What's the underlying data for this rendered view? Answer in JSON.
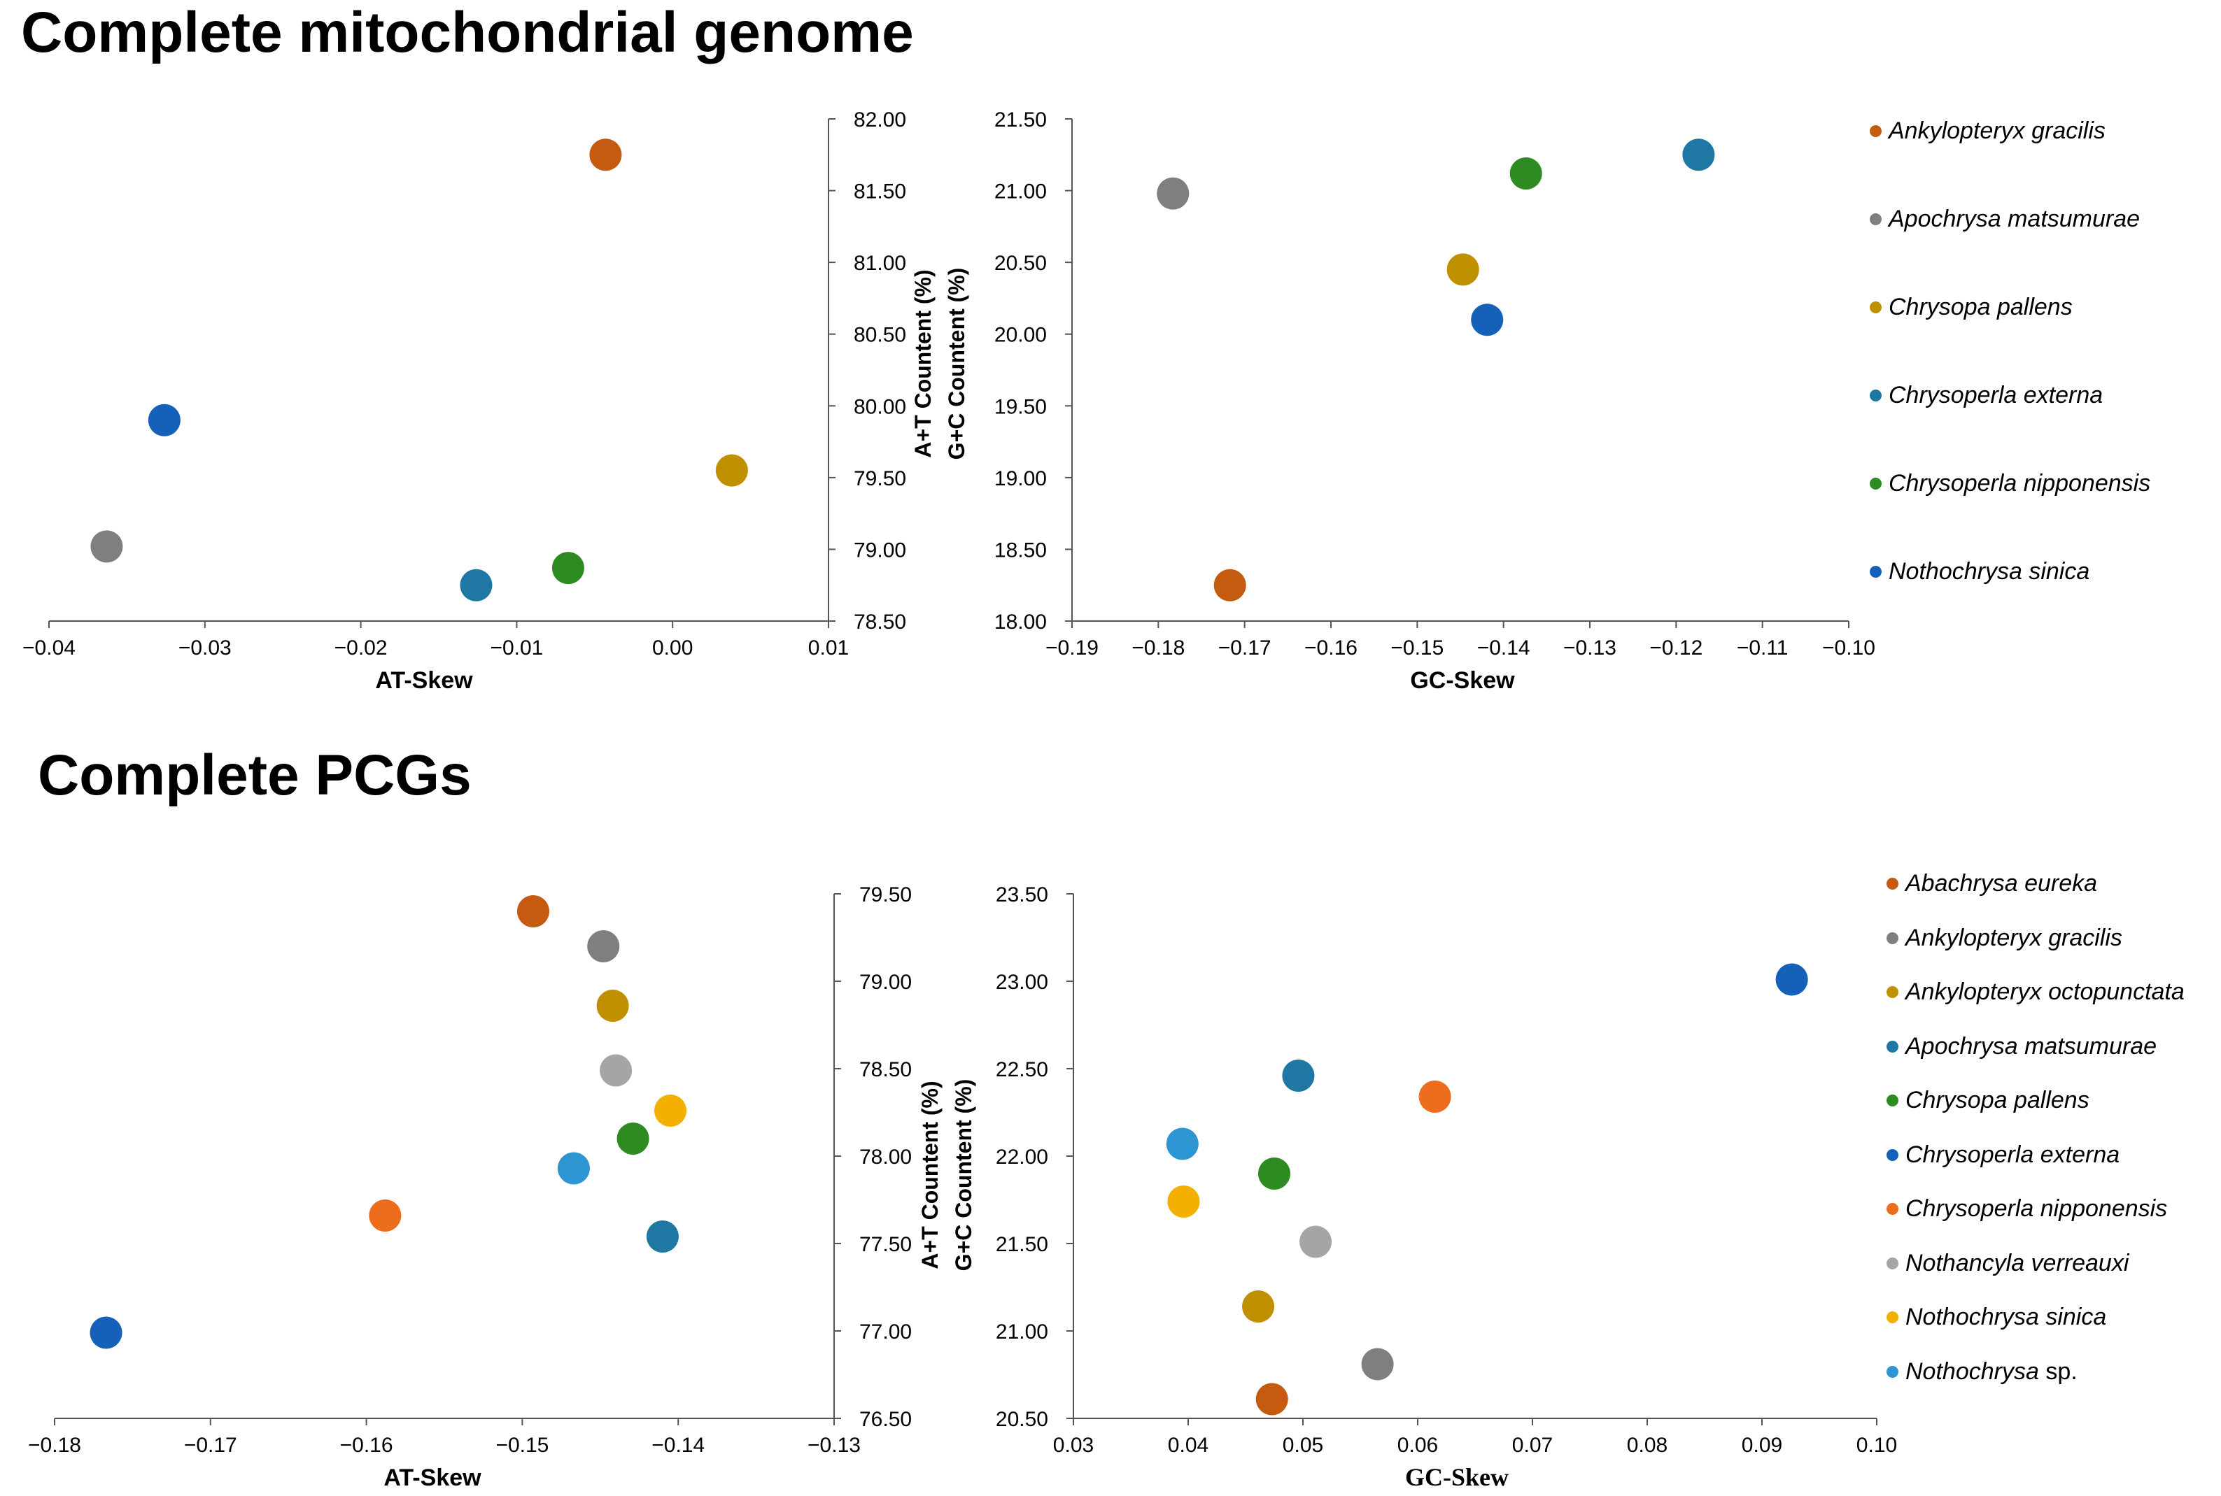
{
  "titles": {
    "top": "Complete mitochondrial genome",
    "bottom": "Complete PCGs"
  },
  "y_labels": {
    "at": "A+T Countent (%)",
    "gc": "G+C Countent (%)"
  },
  "legends": {
    "top": [
      {
        "name": "Ankylopteryx gracilis",
        "suffix": "",
        "color": "#C55A11"
      },
      {
        "name": "Apochrysa matsumurae",
        "suffix": "",
        "color": "#7F7F7F"
      },
      {
        "name": "Chrysopa pallens",
        "suffix": "",
        "color": "#BF9000"
      },
      {
        "name": "Chrysoperla externa",
        "suffix": "",
        "color": "#1F77A4"
      },
      {
        "name": "Chrysoperla nipponensis",
        "suffix": "",
        "color": "#2E8B22"
      },
      {
        "name": "Nothochrysa sinica",
        "suffix": "",
        "color": "#1560B8"
      }
    ],
    "bottom": [
      {
        "name": "Abachrysa eureka",
        "suffix": "",
        "color": "#C55A11"
      },
      {
        "name": "Ankylopteryx gracilis",
        "suffix": "",
        "color": "#7F7F7F"
      },
      {
        "name": "Ankylopteryx octopunctata",
        "suffix": "",
        "color": "#BF9000"
      },
      {
        "name": "Apochrysa matsumurae",
        "suffix": "",
        "color": "#1F77A4"
      },
      {
        "name": "Chrysopa pallens",
        "suffix": "",
        "color": "#2E8B22"
      },
      {
        "name": "Chrysoperla externa",
        "suffix": "",
        "color": "#1560B8"
      },
      {
        "name": "Chrysoperla nipponensis",
        "suffix": "",
        "color": "#ED6D1F"
      },
      {
        "name": "Nothancyla verreauxi",
        "suffix": "",
        "color": "#A5A5A5"
      },
      {
        "name": "Nothochrysa sinica",
        "suffix": "",
        "color": "#F4B000"
      },
      {
        "name": "Nothochrysa",
        "suffix": " sp.",
        "color": "#2E95D3"
      }
    ]
  },
  "chart_data": [
    {
      "type": "scatter",
      "section": "Complete mitochondrial genome",
      "xlabel": "AT-Skew",
      "ylabel": "A+T Countent (%)",
      "xlim": [
        -0.04,
        0.01
      ],
      "ylim": [
        78.5,
        82.0
      ],
      "xticks": [
        -0.04,
        -0.03,
        -0.02,
        -0.01,
        0.0,
        0.01
      ],
      "xtick_labels": [
        "−0.04",
        "−0.03",
        "−0.02",
        "−0.01",
        "0.00",
        "0.01"
      ],
      "yticks": [
        78.5,
        79.0,
        79.5,
        80.0,
        80.5,
        81.0,
        81.5,
        82.0
      ],
      "ytick_labels": [
        "78.50",
        "79.00",
        "79.50",
        "80.00",
        "80.50",
        "81.00",
        "81.50",
        "82.00"
      ],
      "y_axis_side": "right",
      "points": [
        {
          "species": "Ankylopteryx gracilis",
          "x": -0.0043,
          "y": 81.75,
          "color": "#C55A11"
        },
        {
          "species": "Apochrysa matsumurae",
          "x": -0.0363,
          "y": 79.02,
          "color": "#7F7F7F"
        },
        {
          "species": "Chrysopa pallens",
          "x": 0.0038,
          "y": 79.55,
          "color": "#BF9000"
        },
        {
          "species": "Chrysoperla externa",
          "x": -0.0126,
          "y": 78.75,
          "color": "#1F77A4"
        },
        {
          "species": "Chrysoperla nipponensis",
          "x": -0.0067,
          "y": 78.87,
          "color": "#2E8B22"
        },
        {
          "species": "Nothochrysa sinica",
          "x": -0.0326,
          "y": 79.9,
          "color": "#1560B8"
        }
      ]
    },
    {
      "type": "scatter",
      "section": "Complete mitochondrial genome",
      "xlabel": "GC-Skew",
      "ylabel": "G+C Countent (%)",
      "xlim": [
        -0.19,
        -0.1
      ],
      "ylim": [
        18.0,
        21.5
      ],
      "xticks": [
        -0.19,
        -0.18,
        -0.17,
        -0.16,
        -0.15,
        -0.14,
        -0.13,
        -0.12,
        -0.11,
        -0.1
      ],
      "xtick_labels": [
        "−0.19",
        "−0.18",
        "−0.17",
        "−0.16",
        "−0.15",
        "−0.14",
        "−0.13",
        "−0.12",
        "−0.11",
        "−0.10"
      ],
      "yticks": [
        18.0,
        18.5,
        19.0,
        19.5,
        20.0,
        20.5,
        21.0,
        21.5
      ],
      "ytick_labels": [
        "18.00",
        "18.50",
        "19.00",
        "19.50",
        "20.00",
        "20.50",
        "21.00",
        "21.50"
      ],
      "y_axis_side": "left",
      "points": [
        {
          "species": "Ankylopteryx gracilis",
          "x": -0.1717,
          "y": 18.25,
          "color": "#C55A11"
        },
        {
          "species": "Apochrysa matsumurae",
          "x": -0.1783,
          "y": 20.98,
          "color": "#7F7F7F"
        },
        {
          "species": "Chrysopa pallens",
          "x": -0.1447,
          "y": 20.45,
          "color": "#BF9000"
        },
        {
          "species": "Chrysoperla externa",
          "x": -0.1174,
          "y": 21.25,
          "color": "#1F77A4"
        },
        {
          "species": "Chrysoperla nipponensis",
          "x": -0.1374,
          "y": 21.12,
          "color": "#2E8B22"
        },
        {
          "species": "Nothochrysa sinica",
          "x": -0.1419,
          "y": 20.1,
          "color": "#1560B8"
        }
      ]
    },
    {
      "type": "scatter",
      "section": "Complete PCGs",
      "xlabel": "AT-Skew",
      "ylabel": "A+T Countent (%)",
      "xlim": [
        -0.18,
        -0.13
      ],
      "ylim": [
        76.5,
        79.5
      ],
      "xticks": [
        -0.18,
        -0.17,
        -0.16,
        -0.15,
        -0.14,
        -0.13
      ],
      "xtick_labels": [
        "−0.18",
        "−0.17",
        "−0.16",
        "−0.15",
        "−0.14",
        "−0.13"
      ],
      "yticks": [
        76.5,
        77.0,
        77.5,
        78.0,
        78.5,
        79.0,
        79.5
      ],
      "ytick_labels": [
        "76.50",
        "77.00",
        "77.50",
        "78.00",
        "78.50",
        "79.00",
        "79.50"
      ],
      "y_axis_side": "right",
      "points": [
        {
          "species": "Abachrysa eureka",
          "x": -0.1493,
          "y": 79.4,
          "color": "#C55A11"
        },
        {
          "species": "Ankylopteryx gracilis",
          "x": -0.1448,
          "y": 79.2,
          "color": "#7F7F7F"
        },
        {
          "species": "Ankylopteryx octopunctata",
          "x": -0.1442,
          "y": 78.86,
          "color": "#BF9000"
        },
        {
          "species": "Apochrysa matsumurae",
          "x": -0.141,
          "y": 77.54,
          "color": "#1F77A4"
        },
        {
          "species": "Chrysopa pallens",
          "x": -0.1429,
          "y": 78.1,
          "color": "#2E8B22"
        },
        {
          "species": "Chrysoperla externa",
          "x": -0.1767,
          "y": 76.99,
          "color": "#1560B8"
        },
        {
          "species": "Chrysoperla nipponensis",
          "x": -0.1588,
          "y": 77.66,
          "color": "#ED6D1F"
        },
        {
          "species": "Nothancyla verreauxi",
          "x": -0.144,
          "y": 78.49,
          "color": "#A5A5A5"
        },
        {
          "species": "Nothochrysa sinica",
          "x": -0.1405,
          "y": 78.26,
          "color": "#F4B000"
        },
        {
          "species": "Nothochrysa sp.",
          "x": -0.1467,
          "y": 77.93,
          "color": "#2E95D3"
        }
      ]
    },
    {
      "type": "scatter",
      "section": "Complete PCGs",
      "xlabel": "GC-Skew",
      "ylabel": "G+C Countent (%)",
      "xlim": [
        0.03,
        0.1
      ],
      "ylim": [
        20.5,
        23.5
      ],
      "xticks": [
        0.03,
        0.04,
        0.05,
        0.06,
        0.07,
        0.08,
        0.09,
        0.1
      ],
      "xtick_labels": [
        "0.03",
        "0.04",
        "0.05",
        "0.06",
        "0.07",
        "0.08",
        "0.09",
        "0.10"
      ],
      "yticks": [
        20.5,
        21.0,
        21.5,
        22.0,
        22.5,
        23.0,
        23.5
      ],
      "ytick_labels": [
        "20.50",
        "21.00",
        "21.50",
        "22.00",
        "22.50",
        "23.00",
        "23.50"
      ],
      "y_axis_side": "left",
      "points": [
        {
          "species": "Abachrysa eureka",
          "x": 0.0473,
          "y": 20.61,
          "color": "#C55A11"
        },
        {
          "species": "Ankylopteryx gracilis",
          "x": 0.0565,
          "y": 20.81,
          "color": "#7F7F7F"
        },
        {
          "species": "Ankylopteryx octopunctata",
          "x": 0.0461,
          "y": 21.14,
          "color": "#BF9000"
        },
        {
          "species": "Apochrysa matsumurae",
          "x": 0.0496,
          "y": 22.46,
          "color": "#1F77A4"
        },
        {
          "species": "Chrysopa pallens",
          "x": 0.0475,
          "y": 21.9,
          "color": "#2E8B22"
        },
        {
          "species": "Chrysoperla externa",
          "x": 0.0926,
          "y": 23.01,
          "color": "#1560B8"
        },
        {
          "species": "Chrysoperla nipponensis",
          "x": 0.0615,
          "y": 22.34,
          "color": "#ED6D1F"
        },
        {
          "species": "Nothancyla verreauxi",
          "x": 0.0511,
          "y": 21.51,
          "color": "#A5A5A5"
        },
        {
          "species": "Nothochrysa sinica",
          "x": 0.0396,
          "y": 21.74,
          "color": "#F4B000"
        },
        {
          "species": "Nothochrysa sp.",
          "x": 0.0395,
          "y": 22.07,
          "color": "#2E95D3"
        }
      ]
    }
  ]
}
